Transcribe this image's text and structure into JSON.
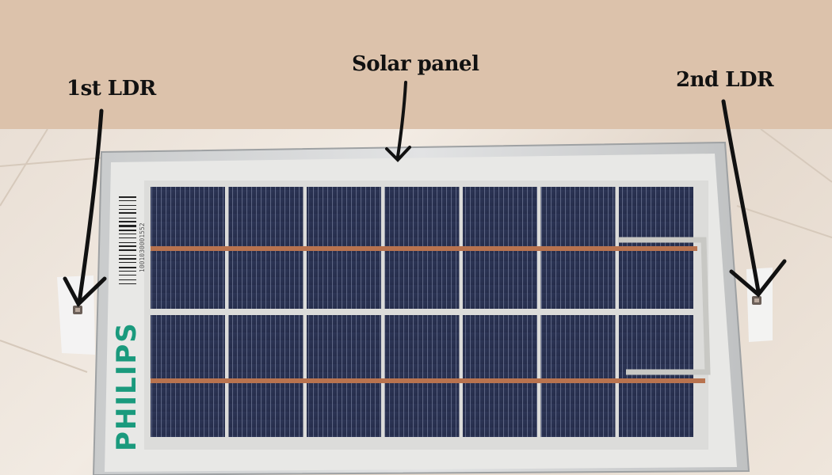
{
  "annotations": {
    "solar_panel_label": "Solar panel",
    "first_ldr_label": "1st LDR",
    "second_ldr_label": "2nd LDR"
  },
  "panel": {
    "brand_text": "PHILIPS",
    "barcode_number": "1001030001552",
    "cell_columns": 7,
    "cell_rows": 2
  },
  "colors": {
    "background_band": "#dcc2ab",
    "panel_frame": "#d3d5d6",
    "cell_blue": "#283050",
    "brand_green": "#1a9a7d",
    "busbar_copper": "#b8734f",
    "arrow_ink": "#111111"
  }
}
